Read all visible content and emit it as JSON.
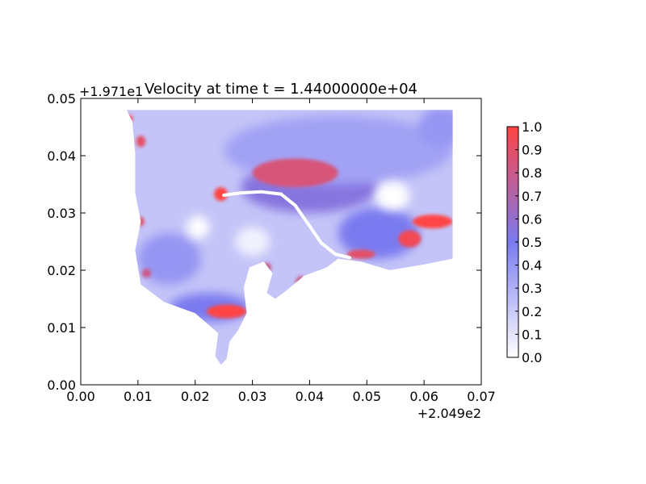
{
  "chart_data": {
    "type": "heatmap",
    "title": "Velocity at time t = 1.44000000e+04",
    "xlabel": "",
    "ylabel": "",
    "x_offset_label": "+2.049e2",
    "y_offset_label": "+1.971e1",
    "xlim": [
      0.0,
      0.07
    ],
    "ylim": [
      0.0,
      0.05
    ],
    "x_ticks": [
      "0.00",
      "0.01",
      "0.02",
      "0.03",
      "0.04",
      "0.05",
      "0.06",
      "0.07"
    ],
    "y_ticks": [
      "0.00",
      "0.01",
      "0.02",
      "0.03",
      "0.04",
      "0.05"
    ],
    "grid": false,
    "colorbar": {
      "range": [
        0.0,
        1.0
      ],
      "ticks": [
        "0.0",
        "0.1",
        "0.2",
        "0.3",
        "0.4",
        "0.5",
        "0.6",
        "0.7",
        "0.8",
        "0.9",
        "1.0"
      ],
      "colors": [
        "#ffffff",
        "#7a7af0",
        "#ff4444"
      ]
    },
    "domain_outline": [
      [
        0.008,
        0.048
      ],
      [
        0.065,
        0.048
      ],
      [
        0.065,
        0.022
      ],
      [
        0.06,
        0.021
      ],
      [
        0.054,
        0.02
      ],
      [
        0.049,
        0.0215
      ],
      [
        0.045,
        0.022
      ],
      [
        0.043,
        0.0205
      ],
      [
        0.039,
        0.019
      ],
      [
        0.036,
        0.0165
      ],
      [
        0.034,
        0.015
      ],
      [
        0.0325,
        0.016
      ],
      [
        0.0335,
        0.0195
      ],
      [
        0.032,
        0.0215
      ],
      [
        0.0295,
        0.0205
      ],
      [
        0.0285,
        0.017
      ],
      [
        0.029,
        0.0125
      ],
      [
        0.0275,
        0.0095
      ],
      [
        0.026,
        0.0075
      ],
      [
        0.0255,
        0.0045
      ],
      [
        0.0245,
        0.0035
      ],
      [
        0.0235,
        0.005
      ],
      [
        0.024,
        0.009
      ],
      [
        0.02,
        0.0125
      ],
      [
        0.0145,
        0.0145
      ],
      [
        0.0105,
        0.0175
      ],
      [
        0.0095,
        0.0235
      ],
      [
        0.0105,
        0.0285
      ],
      [
        0.0095,
        0.0335
      ],
      [
        0.0095,
        0.0405
      ],
      [
        0.009,
        0.046
      ],
      [
        0.008,
        0.048
      ]
    ],
    "high_velocity_regions": [
      {
        "cx": 0.0255,
        "cy": 0.0128,
        "rx": 0.0035,
        "ry": 0.0012,
        "value": 1.0
      },
      {
        "cx": 0.0245,
        "cy": 0.0333,
        "rx": 0.0012,
        "ry": 0.0012,
        "value": 1.0
      },
      {
        "cx": 0.0375,
        "cy": 0.037,
        "rx": 0.0075,
        "ry": 0.0025,
        "value": 0.85
      },
      {
        "cx": 0.0615,
        "cy": 0.0285,
        "rx": 0.0035,
        "ry": 0.0012,
        "value": 1.0
      },
      {
        "cx": 0.0575,
        "cy": 0.0255,
        "rx": 0.002,
        "ry": 0.0015,
        "value": 0.95
      },
      {
        "cx": 0.049,
        "cy": 0.0228,
        "rx": 0.0025,
        "ry": 0.0008,
        "value": 0.9
      },
      {
        "cx": 0.0385,
        "cy": 0.0175,
        "rx": 0.001,
        "ry": 0.0015,
        "value": 0.8
      },
      {
        "cx": 0.0325,
        "cy": 0.0205,
        "rx": 0.0008,
        "ry": 0.0008,
        "value": 0.8
      },
      {
        "cx": 0.0105,
        "cy": 0.0425,
        "rx": 0.0008,
        "ry": 0.001,
        "value": 0.9
      },
      {
        "cx": 0.0105,
        "cy": 0.0285,
        "rx": 0.0006,
        "ry": 0.0008,
        "value": 0.9
      },
      {
        "cx": 0.0115,
        "cy": 0.0195,
        "rx": 0.0008,
        "ry": 0.0008,
        "value": 0.8
      },
      {
        "cx": 0.0085,
        "cy": 0.0465,
        "rx": 0.0006,
        "ry": 0.0006,
        "value": 1.0
      }
    ],
    "medium_velocity_regions": [
      {
        "cx": 0.04,
        "cy": 0.0345,
        "rx": 0.012,
        "ry": 0.0045,
        "value": 0.55
      },
      {
        "cx": 0.052,
        "cy": 0.0265,
        "rx": 0.007,
        "ry": 0.0045,
        "value": 0.5
      },
      {
        "cx": 0.0225,
        "cy": 0.0135,
        "rx": 0.007,
        "ry": 0.0025,
        "value": 0.5
      },
      {
        "cx": 0.045,
        "cy": 0.041,
        "rx": 0.02,
        "ry": 0.006,
        "value": 0.35
      },
      {
        "cx": 0.0155,
        "cy": 0.022,
        "rx": 0.0055,
        "ry": 0.0045,
        "value": 0.4
      },
      {
        "cx": 0.063,
        "cy": 0.045,
        "rx": 0.004,
        "ry": 0.0035,
        "value": 0.4
      }
    ],
    "low_velocity_regions": [
      {
        "cx": 0.0545,
        "cy": 0.033,
        "rx": 0.003,
        "ry": 0.0025,
        "value": 0.0
      },
      {
        "cx": 0.0205,
        "cy": 0.0275,
        "rx": 0.002,
        "ry": 0.002,
        "value": 0.0
      },
      {
        "cx": 0.03,
        "cy": 0.025,
        "rx": 0.003,
        "ry": 0.0025,
        "value": 0.05
      }
    ],
    "channel_path": [
      [
        0.025,
        0.0331
      ],
      [
        0.028,
        0.0335
      ],
      [
        0.0315,
        0.0337
      ],
      [
        0.035,
        0.0333
      ],
      [
        0.0375,
        0.0313
      ],
      [
        0.0398,
        0.028
      ],
      [
        0.042,
        0.0248
      ],
      [
        0.0445,
        0.0228
      ],
      [
        0.047,
        0.0222
      ]
    ]
  }
}
